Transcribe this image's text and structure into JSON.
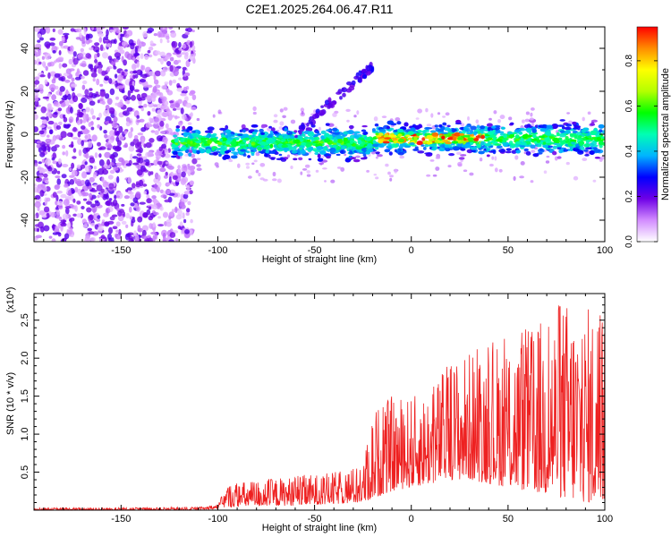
{
  "figure_title": "C2E1.2025.264.06.47.R11",
  "chart_data": [
    {
      "type": "heatmap",
      "xlabel": "Height of straight line (km)",
      "ylabel": "Frequency (Hz)",
      "xlim": [
        -195,
        100
      ],
      "ylim": [
        -50,
        50
      ],
      "x_ticks": [
        -150,
        -100,
        -50,
        0,
        50,
        100
      ],
      "x_tick_labels": [
        "-150",
        "-100",
        "-50",
        "0",
        "50",
        "100"
      ],
      "y_ticks": [
        -40,
        -20,
        0,
        20,
        40
      ],
      "y_tick_labels": [
        "-40",
        "-20",
        "0",
        "20",
        "40"
      ],
      "colorbar": {
        "label": "Normalized spectral amplitude",
        "range": [
          0,
          0.95
        ],
        "ticks": [
          0.0,
          0.2,
          0.4,
          0.6,
          0.8
        ],
        "tick_labels": [
          "0.0",
          "0.2",
          "0.4",
          "0.6",
          "0.8"
        ]
      },
      "features": {
        "noise_region_x": [
          -195,
          -120
        ],
        "main_band_x": [
          -123,
          100
        ],
        "main_band_center_hz": [
          -4,
          -2
        ],
        "main_band_halfwidth_hz": 6,
        "strong_echo_x": [
          -18,
          38
        ],
        "branch_from": [
          -60,
          0
        ],
        "branch_to": [
          -20,
          32
        ]
      }
    },
    {
      "type": "line",
      "xlabel": "Height of straight line (km)",
      "ylabel": "SNR (10 * v/v)",
      "y_multiplier_label": "(x10",
      "y_multiplier_exp": "4",
      "y_multiplier_close": ")",
      "xlim": [
        -195,
        100
      ],
      "ylim": [
        0,
        2.85
      ],
      "x_ticks": [
        -150,
        -100,
        -50,
        0,
        50,
        100
      ],
      "x_tick_labels": [
        "-150",
        "-100",
        "-50",
        "0",
        "50",
        "100"
      ],
      "y_ticks": [
        0.5,
        1.0,
        1.5,
        2.0,
        2.5
      ],
      "y_tick_labels": [
        "0.5",
        "1.0",
        "1.5",
        "2.0",
        "2.5"
      ],
      "series_color": "#ee2020",
      "envelope": {
        "x": [
          -195,
          -110,
          -100,
          -95,
          -80,
          -60,
          -40,
          -25,
          -20,
          -15,
          -10,
          0,
          10,
          20,
          30,
          40,
          50,
          60,
          70,
          80,
          90,
          100
        ],
        "baseline": [
          0.0,
          0.0,
          0.02,
          0.04,
          0.05,
          0.06,
          0.08,
          0.1,
          0.15,
          0.2,
          0.25,
          0.3,
          0.35,
          0.4,
          0.4,
          0.35,
          0.3,
          0.25,
          0.2,
          0.15,
          0.1,
          0.1
        ],
        "peak": [
          0.03,
          0.04,
          0.08,
          0.35,
          0.4,
          0.45,
          0.5,
          0.6,
          1.3,
          1.45,
          1.5,
          1.5,
          1.6,
          2.0,
          2.1,
          2.2,
          2.3,
          2.4,
          2.6,
          2.8,
          2.7,
          2.8
        ]
      }
    }
  ]
}
